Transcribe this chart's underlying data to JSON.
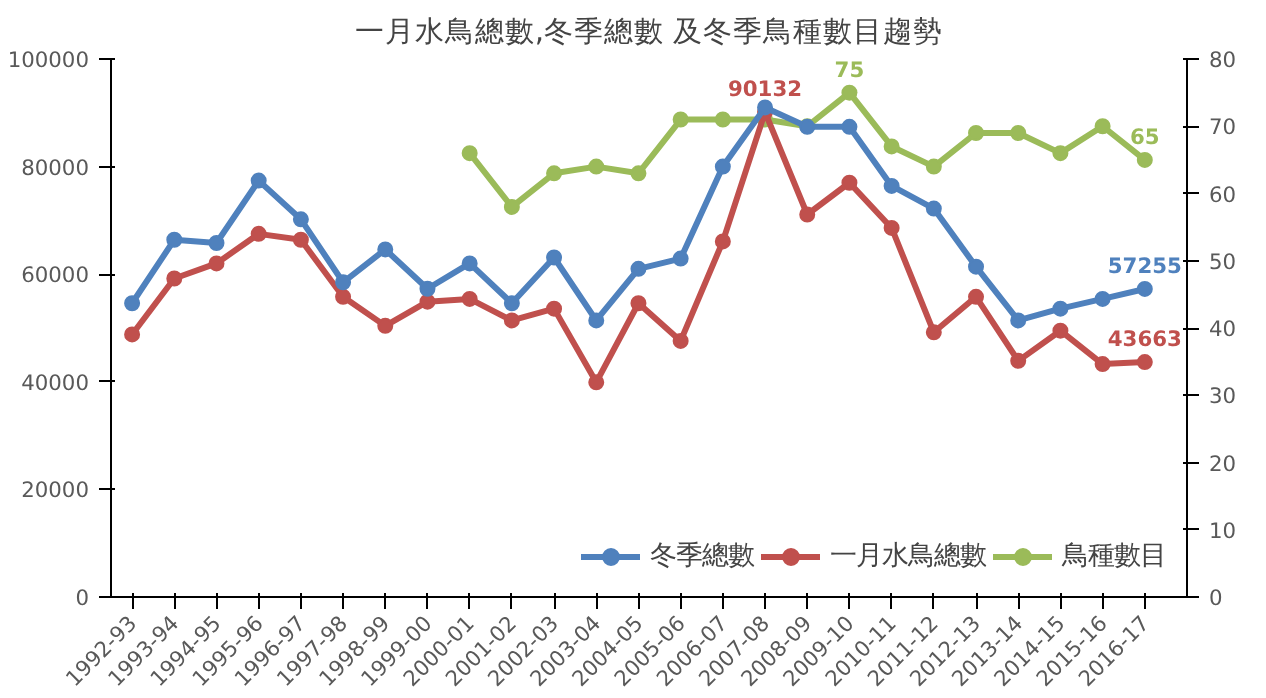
{
  "chart_data": {
    "type": "line",
    "title": "一月水鳥總數,冬季總數 及冬季鳥種數目趨勢",
    "categories": [
      "1992-93",
      "1993-94",
      "1994-95",
      "1995-96",
      "1996-97",
      "1997-98",
      "1998-99",
      "1999-00",
      "2000-01",
      "2001-02",
      "2002-03",
      "2003-04",
      "2004-05",
      "2005-06",
      "2006-07",
      "2007-08",
      "2008-09",
      "2009-10",
      "2010-11",
      "2011-12",
      "2012-13",
      "2013-14",
      "2014-15",
      "2015-16",
      "2016-17"
    ],
    "series": [
      {
        "name": "冬季總數",
        "color": "#4f81bd",
        "values": [
          54600,
          66400,
          65800,
          77400,
          70200,
          58500,
          64600,
          57300,
          62000,
          54600,
          63100,
          51400,
          61000,
          62900,
          80000,
          91000,
          87400,
          87400,
          76400,
          72200,
          61400,
          51400,
          53600,
          55400,
          57255
        ],
        "value_labels": [
          null,
          null,
          null,
          null,
          null,
          null,
          null,
          null,
          null,
          null,
          null,
          null,
          null,
          null,
          null,
          null,
          null,
          null,
          null,
          null,
          null,
          null,
          null,
          null,
          "57255"
        ]
      },
      {
        "name": "一月水鳥總數",
        "color": "#c0504d",
        "values": [
          48800,
          59200,
          62000,
          67500,
          66400,
          55800,
          50400,
          54900,
          55400,
          51400,
          53600,
          39900,
          54600,
          47600,
          66100,
          90132,
          71100,
          77000,
          68600,
          49200,
          55800,
          43900,
          49500,
          43300,
          43663
        ],
        "value_labels": [
          null,
          null,
          null,
          null,
          null,
          null,
          null,
          null,
          null,
          null,
          null,
          null,
          null,
          null,
          null,
          "90132",
          null,
          null,
          null,
          null,
          null,
          null,
          null,
          null,
          "43663"
        ]
      },
      {
        "name": "鳥種數目",
        "color": "#9bbb59",
        "axis": "y2",
        "values": [
          null,
          null,
          null,
          null,
          null,
          null,
          null,
          null,
          66,
          58,
          63,
          64,
          63,
          71,
          71,
          71,
          70,
          75,
          67,
          64,
          69,
          69,
          66,
          70,
          65
        ],
        "value_labels": [
          null,
          null,
          null,
          null,
          null,
          null,
          null,
          null,
          null,
          null,
          null,
          null,
          null,
          null,
          null,
          null,
          null,
          "75",
          null,
          null,
          null,
          null,
          null,
          null,
          "65"
        ]
      }
    ],
    "ylim": [
      0,
      100000
    ],
    "yticks": [
      0,
      20000,
      40000,
      60000,
      80000,
      100000
    ],
    "y2lim": [
      0,
      80
    ],
    "y2ticks": [
      0,
      10,
      20,
      30,
      40,
      50,
      60,
      70,
      80
    ],
    "grid": false,
    "legend": "bottom right",
    "marker": "circle",
    "line_style": "solid"
  }
}
